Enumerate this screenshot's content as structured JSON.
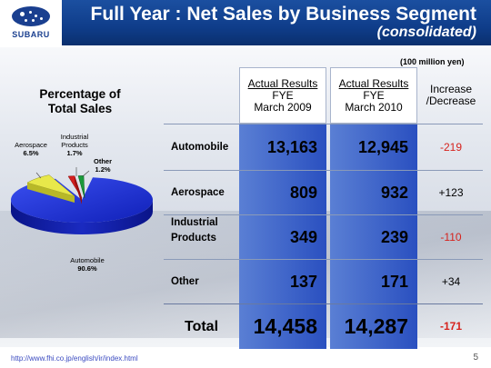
{
  "header": {
    "title": "Full Year : Net Sales by Business Segment",
    "subtitle": "(consolidated)",
    "logo_text": "SUBARU"
  },
  "unit_note": "(100 million yen)",
  "pie": {
    "title_line1": "Percentage of",
    "title_line2": "Total Sales",
    "slices": [
      {
        "name": "Automobile",
        "value": "90.6%",
        "share": 90.6,
        "color": "#1a2fd6"
      },
      {
        "name": "Aerospace",
        "value": "6.5%",
        "share": 6.5,
        "color": "#e8e84a"
      },
      {
        "name_line1": "Industrial",
        "name_line2": "Products",
        "value": "1.7%",
        "share": 1.7,
        "color": "#d21e1e"
      },
      {
        "name": "Other",
        "value": "1.2%",
        "share": 1.2,
        "color": "#1a9a3a"
      }
    ]
  },
  "table": {
    "headers": {
      "col1": {
        "line1": "Actual Results",
        "line2": "FYE",
        "line3": "March 2009"
      },
      "col2": {
        "line1": "Actual Results",
        "line2": "FYE",
        "line3": "March 2010"
      },
      "col3": {
        "line1": "Increase",
        "line2": "/Decrease"
      }
    },
    "rows": [
      {
        "label": "Automobile",
        "fy2009": "13,163",
        "fy2010": "12,945",
        "change": "-219"
      },
      {
        "label": "Aerospace",
        "fy2009": "809",
        "fy2010": "932",
        "change": "+123"
      },
      {
        "label_line1": "Industrial",
        "label_line2": "Products",
        "fy2009": "349",
        "fy2010": "239",
        "change": "-110"
      },
      {
        "label": "Other",
        "fy2009": "137",
        "fy2010": "171",
        "change": "+34"
      }
    ],
    "total": {
      "label": "Total",
      "fy2009": "14,458",
      "fy2010": "14,287",
      "change": "-171"
    }
  },
  "footer": {
    "url": "http://www.fhi.co.jp/english/ir/index.html",
    "page": "5"
  }
}
